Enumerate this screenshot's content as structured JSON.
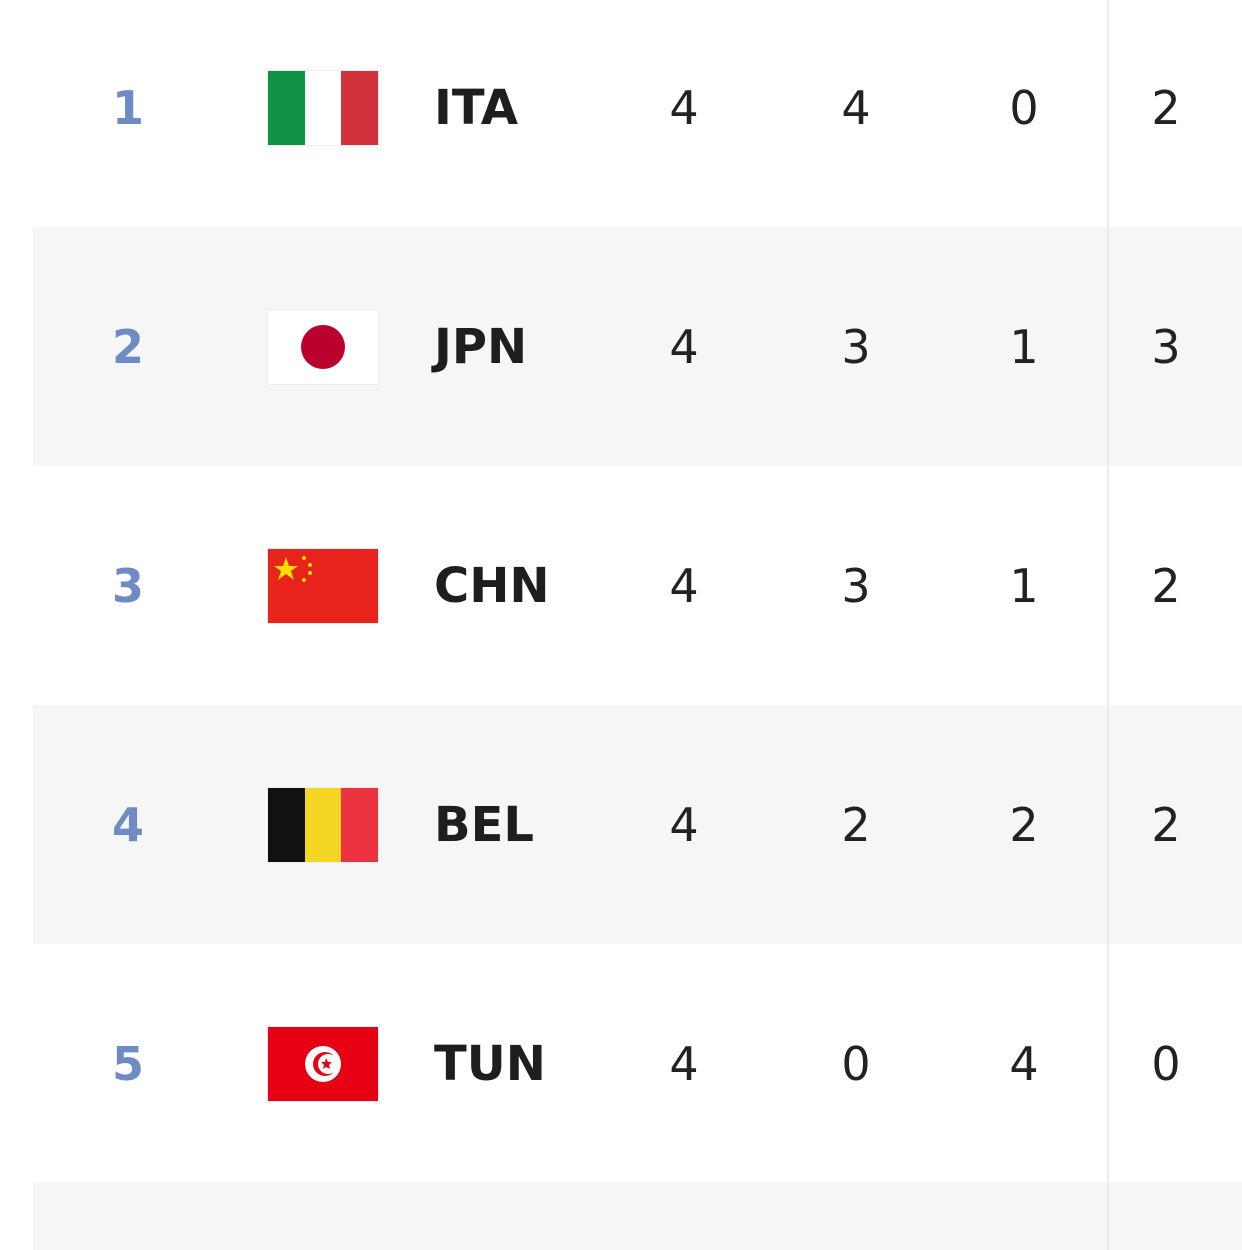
{
  "standings": [
    {
      "rank": "1",
      "code": "ITA",
      "flag": "italy-flag",
      "played": "4",
      "won": "4",
      "lost": "0",
      "points": "2"
    },
    {
      "rank": "2",
      "code": "JPN",
      "flag": "japan-flag",
      "played": "4",
      "won": "3",
      "lost": "1",
      "points": "3"
    },
    {
      "rank": "3",
      "code": "CHN",
      "flag": "china-flag",
      "played": "4",
      "won": "3",
      "lost": "1",
      "points": "2"
    },
    {
      "rank": "4",
      "code": "BEL",
      "flag": "belgium-flag",
      "played": "4",
      "won": "2",
      "lost": "2",
      "points": "2"
    },
    {
      "rank": "5",
      "code": "TUN",
      "flag": "tunisia-flag",
      "played": "4",
      "won": "0",
      "lost": "4",
      "points": "0"
    }
  ],
  "colors": {
    "rank": "#6f8bc4",
    "alt_row": "#f6f6f6",
    "text": "#222222"
  }
}
